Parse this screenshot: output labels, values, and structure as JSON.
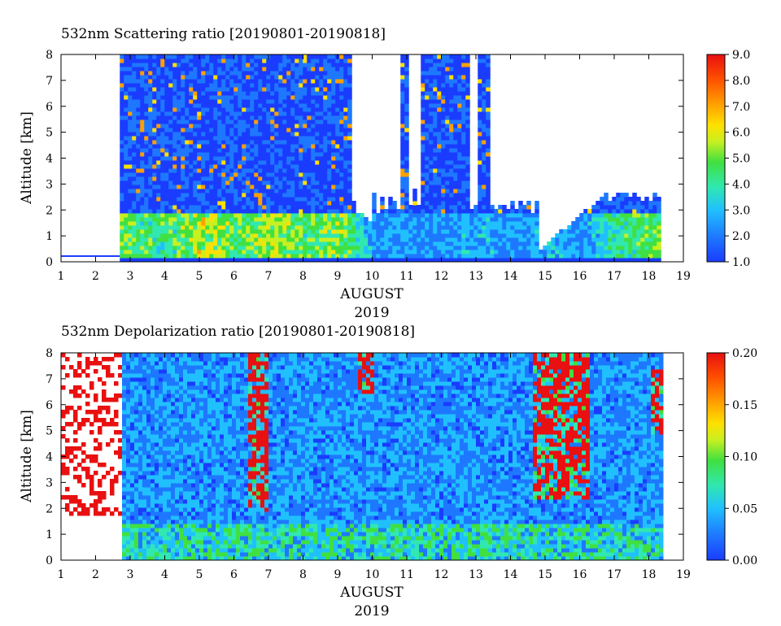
{
  "chart_data": [
    {
      "type": "heatmap",
      "title": "532nm Scattering ratio [20190801-20190818]",
      "xlabel": "AUGUST",
      "xlabel2": "2019",
      "ylabel": "Altitude [km]",
      "xlim": [
        1,
        19
      ],
      "ylim": [
        0,
        8
      ],
      "x_ticks": [
        "1",
        "2",
        "3",
        "4",
        "5",
        "6",
        "7",
        "8",
        "9",
        "10",
        "11",
        "12",
        "13",
        "14",
        "15",
        "16",
        "17",
        "18",
        "19"
      ],
      "y_ticks": [
        "0",
        "1",
        "2",
        "3",
        "4",
        "5",
        "6",
        "7",
        "8"
      ],
      "colorbar": {
        "min": 1.0,
        "max": 9.0,
        "ticks": [
          "1.0",
          "2.0",
          "3.0",
          "4.0",
          "5.0",
          "6.0",
          "7.0",
          "8.0",
          "9.0"
        ]
      },
      "data_start_day": 2.7,
      "data_end_day": 18.3,
      "low_level_mean_ratio_0_2km": [
        {
          "day": 3,
          "value": 4.5
        },
        {
          "day": 4,
          "value": 4.0
        },
        {
          "day": 5,
          "value": 5.5
        },
        {
          "day": 6,
          "value": 4.5
        },
        {
          "day": 7,
          "value": 5.0
        },
        {
          "day": 8,
          "value": 4.5
        },
        {
          "day": 9,
          "value": 5.0
        },
        {
          "day": 10,
          "value": 2.5
        },
        {
          "day": 11,
          "value": 2.5
        },
        {
          "day": 12,
          "value": 2.5
        },
        {
          "day": 13,
          "value": 3.0
        },
        {
          "day": 14,
          "value": 2.5
        },
        {
          "day": 15,
          "value": 3.0
        },
        {
          "day": 16,
          "value": 2.5
        },
        {
          "day": 17,
          "value": 4.0
        },
        {
          "day": 18,
          "value": 4.5
        }
      ]
    },
    {
      "type": "heatmap",
      "title": "532nm Depolarization ratio [20190801-20190818]",
      "xlabel": "AUGUST",
      "xlabel2": "2019",
      "ylabel": "Altitude [km]",
      "xlim": [
        1,
        19
      ],
      "ylim": [
        0,
        8
      ],
      "x_ticks": [
        "1",
        "2",
        "3",
        "4",
        "5",
        "6",
        "7",
        "8",
        "9",
        "10",
        "11",
        "12",
        "13",
        "14",
        "15",
        "16",
        "17",
        "18",
        "19"
      ],
      "y_ticks": [
        "0",
        "1",
        "2",
        "3",
        "4",
        "5",
        "6",
        "7",
        "8"
      ],
      "colorbar": {
        "min": 0.0,
        "max": 0.2,
        "ticks": [
          "0.00",
          "0.05",
          "0.10",
          "0.15",
          "0.20"
        ]
      },
      "data_start_day": 2.7,
      "data_end_day": 18.3,
      "high_depol_regions": [
        {
          "day_from": 1.0,
          "day_to": 2.7,
          "alt_from": 1.8,
          "alt_to": 8.0,
          "value": 0.2
        },
        {
          "day_from": 6.3,
          "day_to": 6.9,
          "alt_from": 2.0,
          "alt_to": 8.0,
          "value": 0.18
        },
        {
          "day_from": 9.5,
          "day_to": 10.0,
          "alt_from": 6.5,
          "alt_to": 8.0,
          "value": 0.18
        },
        {
          "day_from": 14.6,
          "day_to": 16.2,
          "alt_from": 2.5,
          "alt_to": 8.0,
          "value": 0.19
        },
        {
          "day_from": 18.0,
          "day_to": 18.3,
          "alt_from": 5.0,
          "alt_to": 7.5,
          "value": 0.18
        }
      ]
    }
  ],
  "colors": {
    "scale": [
      "#1a3cff",
      "#1e78ff",
      "#20c0ff",
      "#30e8b0",
      "#40e040",
      "#c8f020",
      "#ffe000",
      "#ffa000",
      "#ff5000",
      "#e81010"
    ],
    "missing": "#ffffff"
  }
}
